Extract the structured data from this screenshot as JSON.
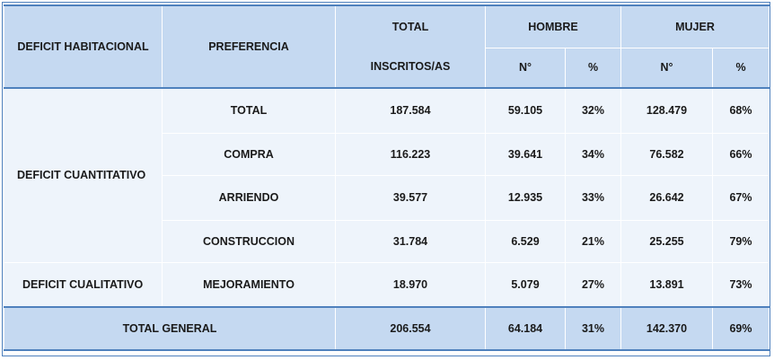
{
  "header": {
    "col1": "DEFICIT HABITACIONAL",
    "col2": "PREFERENCIA",
    "total_line1": "TOTAL",
    "total_line2": "INSCRITOS/AS",
    "hombre": "HOMBRE",
    "mujer": "MUJER",
    "n_label": "N°",
    "pct_label": "%"
  },
  "groups": {
    "cuantitativo": "DEFICIT CUANTITATIVO",
    "cualitativo": "DEFICIT CUALITATIVO"
  },
  "rows": [
    {
      "pref": "TOTAL",
      "total": "187.584",
      "h_n": "59.105",
      "h_pct": "32%",
      "m_n": "128.479",
      "m_pct": "68%"
    },
    {
      "pref": "COMPRA",
      "total": "116.223",
      "h_n": "39.641",
      "h_pct": "34%",
      "m_n": "76.582",
      "m_pct": "66%"
    },
    {
      "pref": "ARRIENDO",
      "total": "39.577",
      "h_n": "12.935",
      "h_pct": "33%",
      "m_n": "26.642",
      "m_pct": "67%"
    },
    {
      "pref": "CONSTRUCCION",
      "total": "31.784",
      "h_n": "6.529",
      "h_pct": "21%",
      "m_n": "25.255",
      "m_pct": "79%"
    },
    {
      "pref": "MEJORAMIENTO",
      "total": "18.970",
      "h_n": "5.079",
      "h_pct": "27%",
      "m_n": "13.891",
      "m_pct": "73%"
    }
  ],
  "total_general": {
    "label": "TOTAL GENERAL",
    "total": "206.554",
    "h_n": "64.184",
    "h_pct": "31%",
    "m_n": "142.370",
    "m_pct": "69%"
  }
}
